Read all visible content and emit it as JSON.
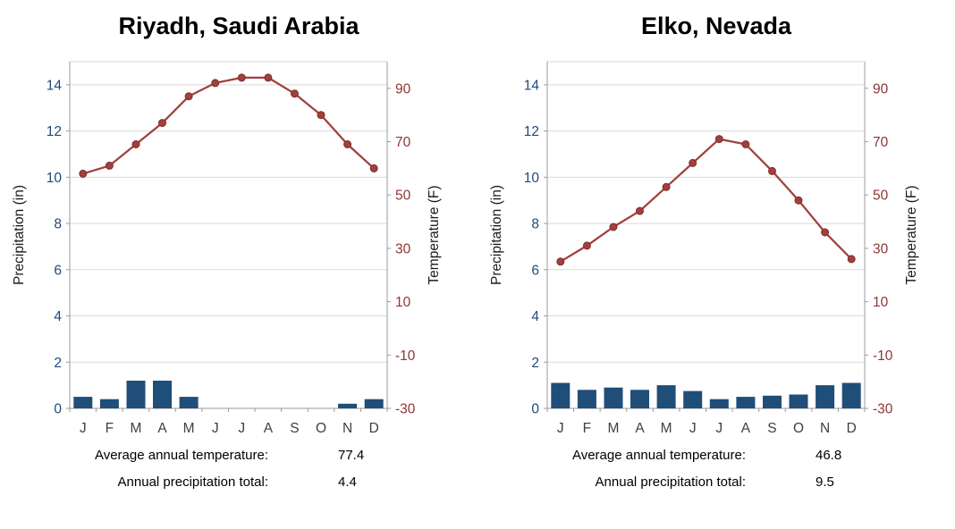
{
  "chart_data": [
    {
      "type": "bar",
      "combo": "bar+line",
      "title": "Riyadh, Saudi Arabia",
      "categories": [
        "J",
        "F",
        "M",
        "A",
        "M",
        "J",
        "J",
        "A",
        "S",
        "O",
        "N",
        "D"
      ],
      "series": [
        {
          "name": "Precipitation (in)",
          "type": "bar",
          "axis": "left",
          "values": [
            0.5,
            0.4,
            1.2,
            1.2,
            0.5,
            0,
            0,
            0,
            0,
            0,
            0.2,
            0.4
          ]
        },
        {
          "name": "Temperature (F)",
          "type": "line",
          "axis": "right",
          "values": [
            58,
            61,
            69,
            77,
            87,
            92,
            94,
            94,
            88,
            80,
            69,
            60
          ]
        }
      ],
      "left_axis": {
        "title": "Precipitation (in)",
        "min": 0,
        "max": 15,
        "tick_step": 2,
        "ticks": [
          0,
          2,
          4,
          6,
          8,
          10,
          12,
          14
        ]
      },
      "right_axis": {
        "title": "Temperature (F)",
        "min": -30,
        "max": 100,
        "tick_step": 20,
        "ticks": [
          -30,
          -10,
          10,
          30,
          50,
          70,
          90
        ]
      },
      "grid": true,
      "legend": "none",
      "annotations": [
        {
          "label": "Average annual temperature:",
          "value": "77.4"
        },
        {
          "label": "Annual precipitation total:",
          "value": "4.4"
        }
      ]
    },
    {
      "type": "bar",
      "combo": "bar+line",
      "title": "Elko, Nevada",
      "categories": [
        "J",
        "F",
        "M",
        "A",
        "M",
        "J",
        "J",
        "A",
        "S",
        "O",
        "N",
        "D"
      ],
      "series": [
        {
          "name": "Precipitation (in)",
          "type": "bar",
          "axis": "left",
          "values": [
            1.1,
            0.8,
            0.9,
            0.8,
            1.0,
            0.75,
            0.4,
            0.5,
            0.55,
            0.6,
            1.0,
            1.1
          ]
        },
        {
          "name": "Temperature (F)",
          "type": "line",
          "axis": "right",
          "values": [
            25,
            31,
            38,
            44,
            53,
            62,
            71,
            69,
            59,
            48,
            36,
            26
          ]
        }
      ],
      "left_axis": {
        "title": "Precipitation (in)",
        "min": 0,
        "max": 15,
        "tick_step": 2,
        "ticks": [
          0,
          2,
          4,
          6,
          8,
          10,
          12,
          14
        ]
      },
      "right_axis": {
        "title": "Temperature (F)",
        "min": -30,
        "max": 100,
        "tick_step": 20,
        "ticks": [
          -30,
          -10,
          10,
          30,
          50,
          70,
          90
        ]
      },
      "grid": true,
      "legend": "none",
      "annotations": [
        {
          "label": "Average annual temperature:",
          "value": "46.8"
        },
        {
          "label": "Annual precipitation total:",
          "value": "9.5"
        }
      ]
    }
  ],
  "style": {
    "bar_color": "#1F4E79",
    "line_color": "#A1403D",
    "marker_edge": "#7F2C2A",
    "left_tick_color": "#1F497D",
    "right_tick_color": "#8E3633",
    "grid_color": "#D9D9D9",
    "axis_color": "#9B9B9B",
    "month_color": "#3F3F3F",
    "axis_title_color": "#1A1A1A",
    "title_color": "#000000",
    "background": "#FFFFFF"
  }
}
